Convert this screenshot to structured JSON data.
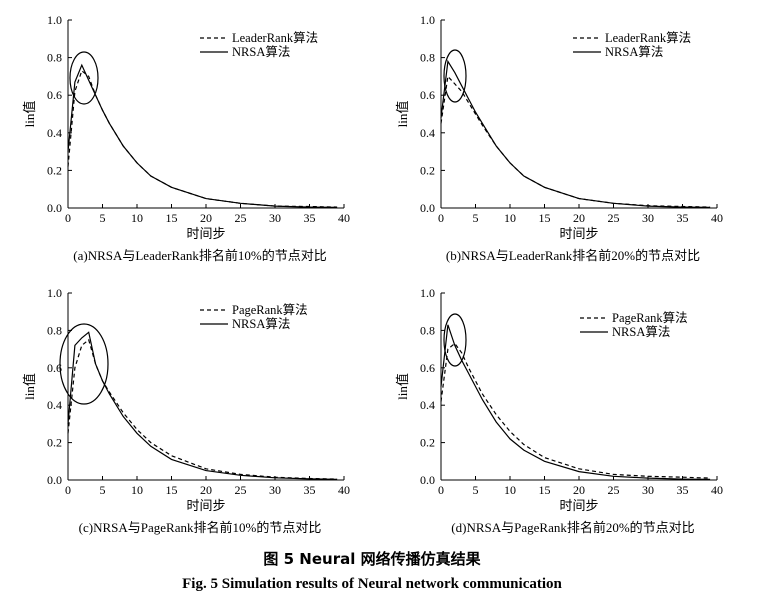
{
  "figure": {
    "caption_cn": "图 5 Neural 网络传播仿真结果",
    "caption_en": "Fig. 5 Simulation results of Neural network communication"
  },
  "chart_data": [
    {
      "type": "line",
      "subtitle": "(a)NRSA与LeaderRank排名前10%的节点对比",
      "xlabel": "时间步",
      "ylabel": "lin值",
      "xlim": [
        0,
        40
      ],
      "ylim": [
        0,
        1.0
      ],
      "xticks": [
        0,
        5,
        10,
        15,
        20,
        25,
        30,
        35,
        40
      ],
      "yticks": [
        0.0,
        0.2,
        0.4,
        0.6,
        0.8,
        1.0
      ],
      "legend_position": "top-right",
      "series": [
        {
          "name": "LeaderRank算法",
          "style": "dashed",
          "x": [
            0,
            1,
            2,
            3,
            4,
            5,
            6,
            8,
            10,
            12,
            15,
            20,
            25,
            30,
            35,
            39
          ],
          "y": [
            0.22,
            0.62,
            0.73,
            0.7,
            0.6,
            0.52,
            0.45,
            0.33,
            0.24,
            0.17,
            0.11,
            0.05,
            0.025,
            0.01,
            0.008,
            0.005
          ]
        },
        {
          "name": "NRSA算法",
          "style": "solid",
          "x": [
            0,
            1,
            2,
            3,
            4,
            5,
            6,
            8,
            10,
            12,
            15,
            20,
            25,
            30,
            35,
            39
          ],
          "y": [
            0.3,
            0.67,
            0.76,
            0.68,
            0.6,
            0.52,
            0.45,
            0.33,
            0.24,
            0.17,
            0.11,
            0.05,
            0.025,
            0.01,
            0.005,
            0.003
          ]
        }
      ],
      "annotation": "circle around peak"
    },
    {
      "type": "line",
      "subtitle": "(b)NRSA与LeaderRank排名前20%的节点对比",
      "xlabel": "时间步",
      "ylabel": "lin值",
      "xlim": [
        0,
        40
      ],
      "ylim": [
        0,
        1.0
      ],
      "xticks": [
        0,
        5,
        10,
        15,
        20,
        25,
        30,
        35,
        40
      ],
      "yticks": [
        0.0,
        0.2,
        0.4,
        0.6,
        0.8,
        1.0
      ],
      "legend_position": "top-right",
      "series": [
        {
          "name": "LeaderRank算法",
          "style": "dashed",
          "x": [
            0,
            1,
            2,
            3,
            4,
            5,
            6,
            8,
            10,
            12,
            15,
            20,
            25,
            30,
            35,
            39
          ],
          "y": [
            0.45,
            0.7,
            0.66,
            0.62,
            0.56,
            0.5,
            0.44,
            0.33,
            0.24,
            0.17,
            0.11,
            0.05,
            0.025,
            0.012,
            0.008,
            0.005
          ]
        },
        {
          "name": "NRSA算法",
          "style": "solid",
          "x": [
            0,
            1,
            2,
            3,
            4,
            5,
            6,
            8,
            10,
            12,
            15,
            20,
            25,
            30,
            35,
            39
          ],
          "y": [
            0.48,
            0.78,
            0.72,
            0.65,
            0.58,
            0.51,
            0.45,
            0.33,
            0.24,
            0.17,
            0.11,
            0.05,
            0.025,
            0.01,
            0.005,
            0.003
          ]
        }
      ],
      "annotation": "circle around peak"
    },
    {
      "type": "line",
      "subtitle": "(c)NRSA与PageRank排名前10%的节点对比",
      "xlabel": "时间步",
      "ylabel": "lin值",
      "xlim": [
        0,
        40
      ],
      "ylim": [
        0,
        1.0
      ],
      "xticks": [
        0,
        5,
        10,
        15,
        20,
        25,
        30,
        35,
        40
      ],
      "yticks": [
        0.0,
        0.2,
        0.4,
        0.6,
        0.8,
        1.0
      ],
      "legend_position": "top-right",
      "series": [
        {
          "name": "PageRank算法",
          "style": "dashed",
          "x": [
            0,
            1,
            2,
            3,
            4,
            5,
            6,
            8,
            10,
            12,
            15,
            20,
            25,
            30,
            35,
            39
          ],
          "y": [
            0.25,
            0.6,
            0.72,
            0.75,
            0.62,
            0.53,
            0.47,
            0.36,
            0.27,
            0.2,
            0.13,
            0.06,
            0.03,
            0.015,
            0.008,
            0.005
          ]
        },
        {
          "name": "NRSA算法",
          "style": "solid",
          "x": [
            0,
            1,
            2,
            3,
            4,
            5,
            6,
            8,
            10,
            12,
            15,
            20,
            25,
            30,
            35,
            39
          ],
          "y": [
            0.3,
            0.72,
            0.76,
            0.79,
            0.62,
            0.53,
            0.46,
            0.34,
            0.25,
            0.18,
            0.11,
            0.05,
            0.025,
            0.012,
            0.006,
            0.004
          ]
        }
      ],
      "annotation": "circle around peak"
    },
    {
      "type": "line",
      "subtitle": "(d)NRSA与PageRank排名前20%的节点对比",
      "xlabel": "时间步",
      "ylabel": "lin值",
      "xlim": [
        0,
        40
      ],
      "ylim": [
        0,
        1.0
      ],
      "xticks": [
        0,
        5,
        10,
        15,
        20,
        25,
        30,
        35,
        40
      ],
      "yticks": [
        0.0,
        0.2,
        0.4,
        0.6,
        0.8,
        1.0
      ],
      "legend_position": "top-right",
      "series": [
        {
          "name": "PageRank算法",
          "style": "dashed",
          "x": [
            0,
            1,
            2,
            3,
            4,
            5,
            6,
            8,
            10,
            12,
            15,
            20,
            25,
            30,
            35,
            39
          ],
          "y": [
            0.42,
            0.7,
            0.73,
            0.68,
            0.6,
            0.53,
            0.46,
            0.35,
            0.26,
            0.19,
            0.12,
            0.06,
            0.03,
            0.02,
            0.015,
            0.01
          ]
        },
        {
          "name": "NRSA算法",
          "style": "solid",
          "x": [
            0,
            1,
            2,
            3,
            4,
            5,
            6,
            8,
            10,
            12,
            15,
            20,
            25,
            30,
            35,
            39
          ],
          "y": [
            0.5,
            0.83,
            0.72,
            0.64,
            0.57,
            0.5,
            0.43,
            0.31,
            0.22,
            0.16,
            0.1,
            0.045,
            0.02,
            0.01,
            0.005,
            0.003
          ]
        }
      ],
      "annotation": "circle around peak"
    }
  ]
}
